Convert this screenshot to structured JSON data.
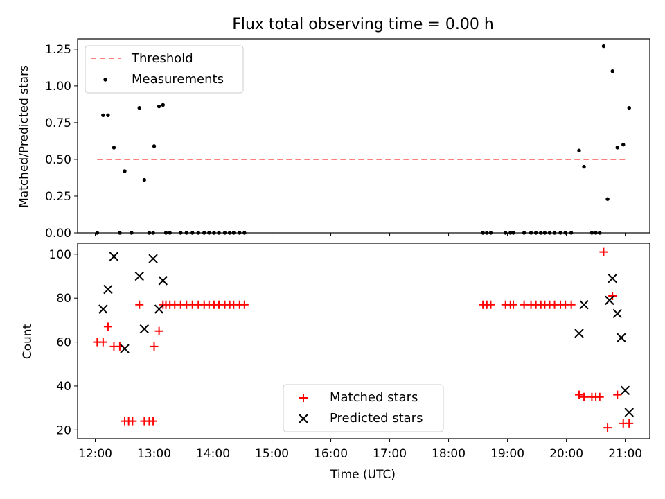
{
  "title": "Flux total observing time = 0.00 h",
  "colors": {
    "threshold": "#ff7f7f",
    "measurements": "#000000",
    "matched": "#ff0000",
    "predicted": "#000000"
  },
  "chart_data": [
    {
      "type": "scatter",
      "ylabel": "Matched/Predicted stars",
      "ylim": [
        0,
        1.32
      ],
      "yticks": [
        0.0,
        0.25,
        0.5,
        0.75,
        1.0,
        1.25
      ],
      "ytick_labels": [
        "0.00",
        "0.25",
        "0.50",
        "0.75",
        "1.00",
        "1.25"
      ],
      "xlim": [
        "11:42",
        "21:25"
      ],
      "legend": {
        "location": "upper-left",
        "threshold_label": "Threshold",
        "measurements_label": "Measurements"
      },
      "threshold": {
        "y": 0.5,
        "x_start": "12:02",
        "x_end": "21:00"
      },
      "series": [
        {
          "name": "Measurements",
          "x": [
            "12:02",
            "12:08",
            "12:13",
            "12:19",
            "12:25",
            "12:30",
            "12:37",
            "12:45",
            "12:50",
            "12:55",
            "12:59",
            "13:00",
            "13:05",
            "13:09",
            "13:12",
            "13:16",
            "13:27",
            "13:33",
            "13:39",
            "13:45",
            "13:51",
            "13:56",
            "14:01",
            "14:06",
            "14:12",
            "14:17",
            "14:21",
            "14:27",
            "14:32",
            "18:35",
            "18:39",
            "18:43",
            "18:58",
            "19:03",
            "19:06",
            "19:17",
            "19:24",
            "19:29",
            "19:34",
            "19:38",
            "19:43",
            "19:48",
            "19:54",
            "19:59",
            "20:05",
            "20:13",
            "20:18",
            "20:26",
            "20:30",
            "20:34",
            "20:38",
            "20:42",
            "20:47",
            "20:52",
            "20:58",
            "21:04"
          ],
          "y": [
            0.0,
            0.8,
            0.8,
            0.58,
            0.0,
            0.42,
            0.0,
            0.85,
            0.36,
            0.0,
            0.0,
            0.59,
            0.86,
            0.87,
            0.0,
            0.0,
            0.0,
            0.0,
            0.0,
            0.0,
            0.0,
            0.0,
            0.0,
            0.0,
            0.0,
            0.0,
            0.0,
            0.0,
            0.0,
            0.0,
            0.0,
            0.0,
            0.0,
            0.0,
            0.0,
            0.0,
            0.0,
            0.0,
            0.0,
            0.0,
            0.0,
            0.0,
            0.0,
            0.0,
            0.0,
            0.56,
            0.45,
            0.0,
            0.0,
            0.0,
            1.27,
            0.23,
            1.1,
            0.58,
            0.6,
            0.85
          ]
        }
      ]
    },
    {
      "type": "scatter",
      "xlabel": "Time (UTC)",
      "ylabel": "Count",
      "ylim": [
        16,
        105
      ],
      "yticks": [
        20,
        40,
        60,
        80,
        100
      ],
      "ytick_labels": [
        "20",
        "40",
        "60",
        "80",
        "100"
      ],
      "xlim": [
        "11:42",
        "21:25"
      ],
      "xticks": [
        "12:00",
        "13:00",
        "14:00",
        "15:00",
        "16:00",
        "17:00",
        "18:00",
        "19:00",
        "20:00",
        "21:00"
      ],
      "legend": {
        "location": "lower-center",
        "matched_label": "Matched stars",
        "predicted_label": "Predicted stars"
      },
      "series": [
        {
          "name": "Matched stars",
          "x": [
            "12:02",
            "12:08",
            "12:13",
            "12:19",
            "12:25",
            "12:30",
            "12:34",
            "12:38",
            "12:45",
            "12:50",
            "12:55",
            "12:59",
            "13:00",
            "13:05",
            "13:09",
            "13:12",
            "13:16",
            "13:21",
            "13:27",
            "13:33",
            "13:39",
            "13:45",
            "13:51",
            "13:56",
            "14:01",
            "14:06",
            "14:12",
            "14:17",
            "14:21",
            "14:27",
            "14:32",
            "18:35",
            "18:39",
            "18:43",
            "18:58",
            "19:03",
            "19:06",
            "19:17",
            "19:24",
            "19:29",
            "19:34",
            "19:38",
            "19:43",
            "19:48",
            "19:54",
            "19:59",
            "20:05",
            "20:13",
            "20:18",
            "20:26",
            "20:30",
            "20:34",
            "20:38",
            "20:42",
            "20:47",
            "20:52",
            "20:58",
            "21:04"
          ],
          "y": [
            60,
            60,
            67,
            58,
            58,
            24,
            24,
            24,
            77,
            24,
            24,
            24,
            58,
            65,
            77,
            77,
            77,
            77,
            77,
            77,
            77,
            77,
            77,
            77,
            77,
            77,
            77,
            77,
            77,
            77,
            77,
            77,
            77,
            77,
            77,
            77,
            77,
            77,
            77,
            77,
            77,
            77,
            77,
            77,
            77,
            77,
            77,
            36,
            35,
            35,
            35,
            35,
            101,
            21,
            81,
            36,
            23,
            23
          ]
        },
        {
          "name": "Predicted stars",
          "x": [
            "12:08",
            "12:13",
            "12:19",
            "12:30",
            "12:45",
            "12:50",
            "12:59",
            "13:05",
            "13:09",
            "20:13",
            "20:18",
            "20:44",
            "20:47",
            "20:52",
            "20:56",
            "21:00",
            "21:04"
          ],
          "y": [
            75,
            84,
            99,
            57,
            90,
            66,
            98,
            75,
            88,
            64,
            77,
            79,
            89,
            73,
            62,
            38,
            28
          ]
        }
      ]
    }
  ]
}
